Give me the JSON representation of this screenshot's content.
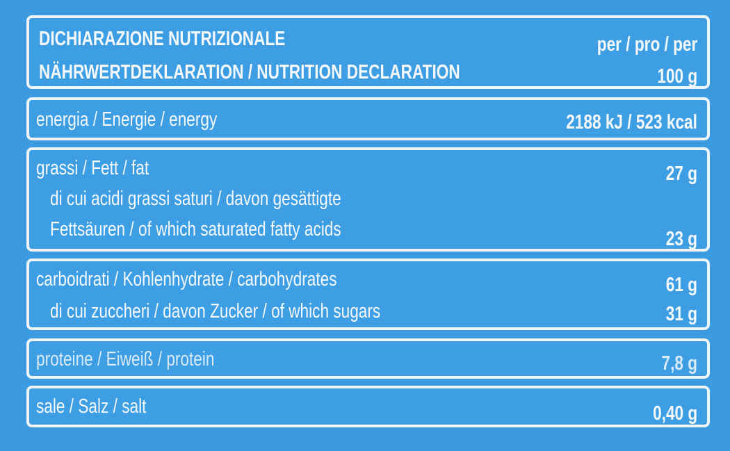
{
  "header": {
    "title_line1": "DICHIARAZIONE NUTRIZIONALE",
    "title_line2": "NÄHRWERTDEKLARATION / NUTRITION DECLARATION",
    "per_line1": "per / pro / per",
    "per_line2": "100 g"
  },
  "energy": {
    "label": "energia / Energie / energy",
    "value": "2188 kJ / 523 kcal"
  },
  "fat": {
    "label": "grassi / Fett / fat",
    "value": "27 g",
    "sat_line1": "di cui acidi grassi saturi / davon gesättigte",
    "sat_line2": "Fettsäuren / of which saturated fatty acids",
    "sat_value": "23 g"
  },
  "carbs": {
    "label": "carboidrati / Kohlenhydrate / carbohydrates",
    "value": "61 g",
    "sugars_label": "di cui zuccheri / davon Zucker / of which sugars",
    "sugars_value": "31 g"
  },
  "protein": {
    "label": "proteine / Eiweiß / protein",
    "value": "7,8 g"
  },
  "salt": {
    "label": "sale / Salz / salt",
    "value": "0,40 g"
  },
  "colors": {
    "background": "#3c9be0",
    "text": "#f4f8fb"
  }
}
